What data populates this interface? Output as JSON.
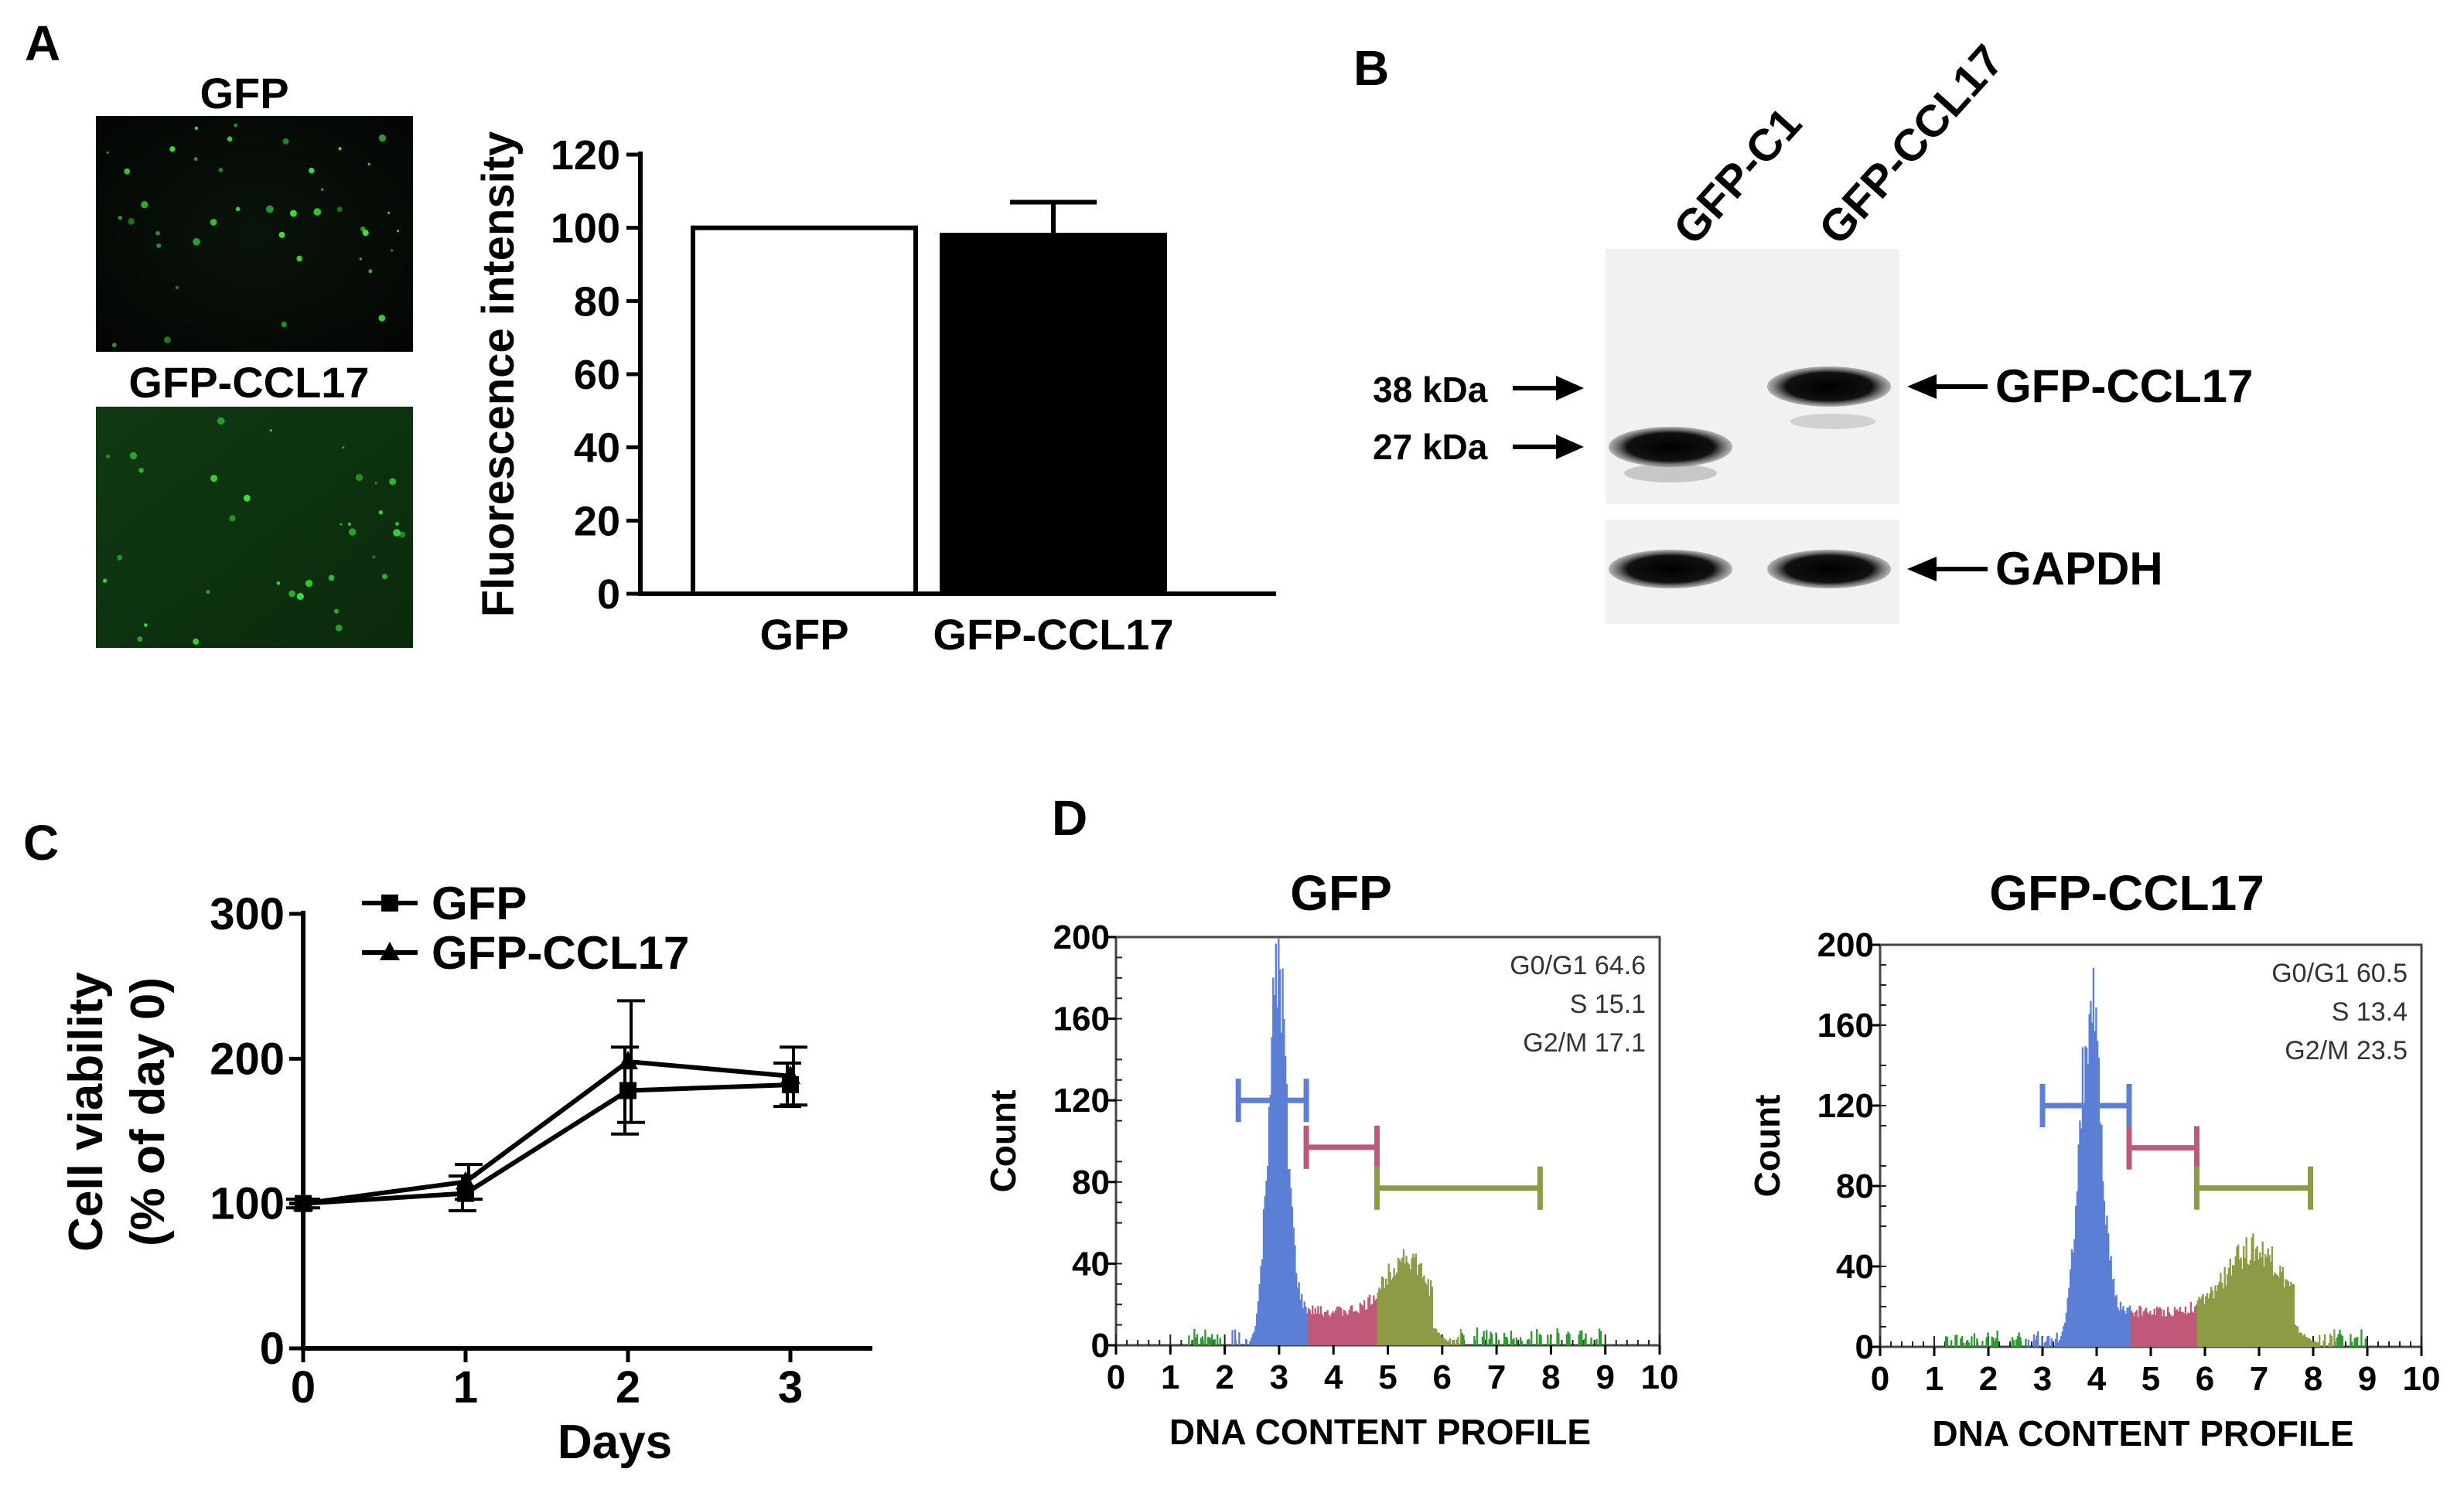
{
  "panels": {
    "A": {
      "label": "A",
      "micrograph_titles": [
        "GFP",
        "GFP-CCL17"
      ]
    },
    "B": {
      "label": "B",
      "lanes": [
        "GFP-C1",
        "GFP-CCL17"
      ],
      "markers": [
        "38 kDa",
        "27 kDa"
      ],
      "bands": [
        "GFP-CCL17",
        "GAPDH"
      ]
    },
    "C": {
      "label": "C"
    },
    "D": {
      "label": "D"
    }
  },
  "colors": {
    "g0g1": "#5b7fd4",
    "s": "#c0587a",
    "g2m": "#8f9a45",
    "debris": "#2f9a2f",
    "micrograph_bg1": "#050805",
    "micrograph_bg2": "#0d2a0d",
    "fluor": "#39e639"
  },
  "chart_data": [
    {
      "id": "A-bar",
      "type": "bar",
      "categories": [
        "GFP",
        "GFP-CCL17"
      ],
      "values": [
        100,
        98
      ],
      "errors": [
        null,
        9
      ],
      "fills": [
        "#ffffff",
        "#000000"
      ],
      "ylabel": "Fluorescence intensity",
      "ylim": [
        0,
        120
      ],
      "yticks": [
        0,
        20,
        40,
        60,
        80,
        100,
        120
      ]
    },
    {
      "id": "C-line",
      "type": "line",
      "x": [
        0,
        1,
        2,
        3
      ],
      "xticks": [
        0,
        1,
        2,
        3
      ],
      "xlabel": "Days",
      "ylabel": "Cell viability",
      "ylabel2": "(% of day 0)",
      "ylim": [
        0,
        300
      ],
      "yticks": [
        0,
        100,
        200,
        300
      ],
      "legend_position": "top-left",
      "series": [
        {
          "name": "GFP",
          "marker": "square",
          "values": [
            100,
            107,
            178,
            182
          ],
          "errors": [
            3,
            12,
            30,
            15
          ]
        },
        {
          "name": "GFP-CCL17",
          "marker": "triangle",
          "values": [
            100,
            115,
            198,
            188
          ],
          "errors": [
            3,
            12,
            42,
            20
          ]
        }
      ]
    },
    {
      "id": "D-hist-GFP",
      "type": "area",
      "title": "GFP",
      "xlabel": "DNA CONTENT PROFILE",
      "ylabel": "Count",
      "xlim": [
        0,
        10
      ],
      "ylim": [
        0,
        200
      ],
      "xticks": [
        0,
        1,
        2,
        3,
        4,
        5,
        6,
        7,
        8,
        9,
        10
      ],
      "yticks": [
        0,
        40,
        80,
        120,
        160,
        200
      ],
      "stats": [
        "G0/G1 64.6",
        "S 15.1",
        "G2/M 17.1"
      ],
      "g1_peak": {
        "center": 2.95,
        "height": 175,
        "width": 0.17
      },
      "g2_peak": {
        "center": 5.3,
        "height": 28,
        "width": 0.35
      },
      "s_level": 17,
      "ranges": [
        {
          "phase": "G0/G1",
          "start": 2.25,
          "end": 3.5,
          "y": 120
        },
        {
          "phase": "S",
          "start": 3.5,
          "end": 4.8,
          "y": 97
        },
        {
          "phase": "G2/M",
          "start": 4.8,
          "end": 7.8,
          "y": 77
        }
      ]
    },
    {
      "id": "D-hist-GFP-CCL17",
      "type": "area",
      "title": "GFP-CCL17",
      "xlabel": "DNA CONTENT PROFILE",
      "ylabel": "Count",
      "xlim": [
        0,
        10
      ],
      "ylim": [
        0,
        200
      ],
      "xticks": [
        0,
        1,
        2,
        3,
        4,
        5,
        6,
        7,
        8,
        9,
        10
      ],
      "yticks": [
        0,
        40,
        80,
        120,
        160,
        200
      ],
      "stats": [
        "G0/G1 60.5",
        "S 13.4",
        "G2/M 23.5"
      ],
      "g1_peak": {
        "center": 3.85,
        "height": 160,
        "width": 0.2
      },
      "g2_peak": {
        "center": 6.9,
        "height": 32,
        "width": 0.5
      },
      "s_level": 18,
      "ranges": [
        {
          "phase": "G0/G1",
          "start": 3.0,
          "end": 4.6,
          "y": 120
        },
        {
          "phase": "S",
          "start": 4.6,
          "end": 5.85,
          "y": 99
        },
        {
          "phase": "G2/M",
          "start": 5.85,
          "end": 7.95,
          "y": 79
        }
      ]
    }
  ]
}
